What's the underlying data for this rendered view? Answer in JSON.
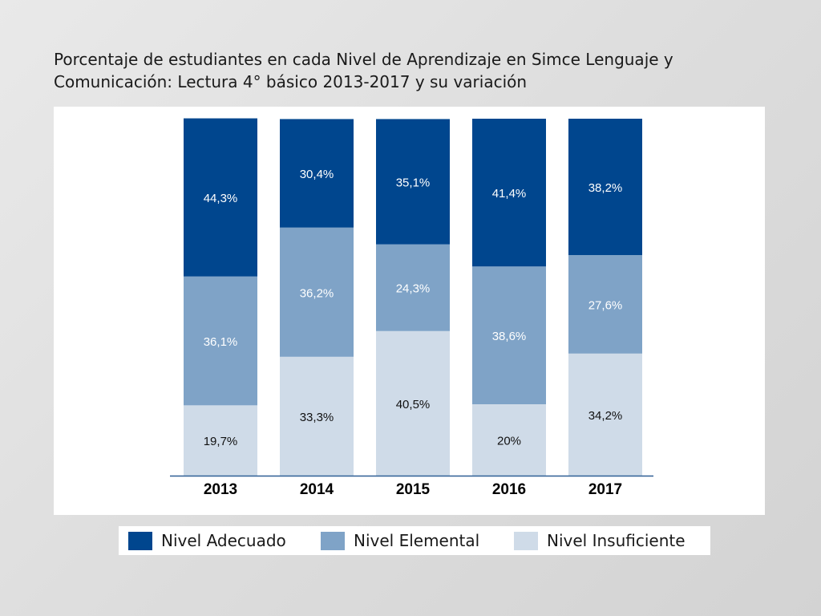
{
  "page": {
    "title": "Porcentaje de estudiantes en cada Nivel de Aprendizaje en Simce Lenguaje y\nComunicación: Lectura 4° básico 2013-2017 y su variación"
  },
  "chart_data": {
    "type": "bar",
    "stacked": true,
    "title": "Porcentaje de estudiantes en cada Nivel de Aprendizaje en Simce Lenguaje y\nComunicación: Lectura 4° básico 2013-2017 y su variación",
    "categories": [
      "2013",
      "2014",
      "2015",
      "2016",
      "2017"
    ],
    "series": [
      {
        "name": "Nivel Insuficiente",
        "values": [
          19.7,
          33.3,
          40.5,
          20,
          34.2
        ],
        "labels": [
          "19,7%",
          "33,3%",
          "40,5%",
          "20%",
          "34,2%"
        ],
        "color": "#cfdbe8"
      },
      {
        "name": "Nivel Elemental",
        "values": [
          36.1,
          36.2,
          24.3,
          38.6,
          27.6
        ],
        "labels": [
          "36,1%",
          "36,2%",
          "24,3%",
          "38,6%",
          "27,6%"
        ],
        "color": "#7fa3c7"
      },
      {
        "name": "Nivel Adecuado",
        "values": [
          44.3,
          30.4,
          35.1,
          41.4,
          38.2
        ],
        "labels": [
          "44,3%",
          "30,4%",
          "35,1%",
          "41,4%",
          "38,2%"
        ],
        "color": "#00468e"
      }
    ],
    "ylim": [
      0,
      100
    ],
    "grid": false,
    "legend": "bottom"
  },
  "legend": {
    "items": [
      {
        "label": "Nivel Adecuado",
        "color": "#00468e"
      },
      {
        "label": "Nivel Elemental",
        "color": "#7fa3c7"
      },
      {
        "label": "Nivel Insuficiente",
        "color": "#cfdbe8"
      }
    ]
  }
}
